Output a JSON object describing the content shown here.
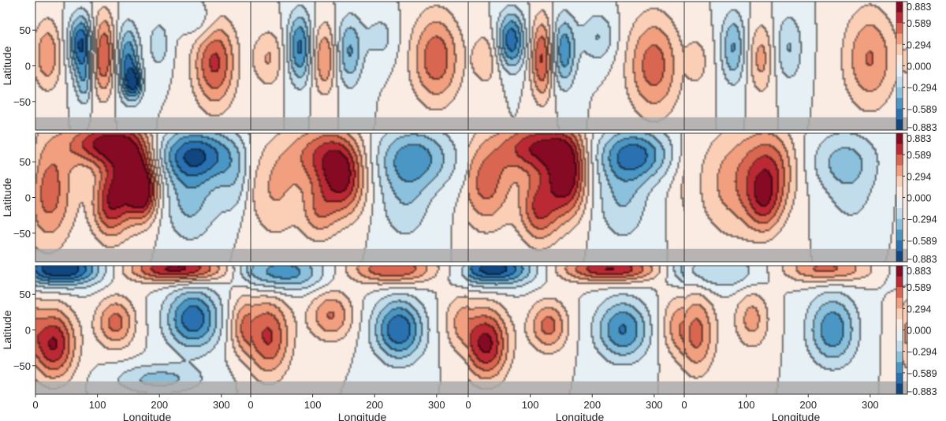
{
  "chart_data": {
    "type": "heatmap",
    "layout": {
      "rows": 3,
      "cols": 4
    },
    "xlabel": "Longitude",
    "ylabel": "Latitude",
    "xlim": [
      0,
      360
    ],
    "ylim": [
      -90,
      90
    ],
    "xticks": [
      0,
      100,
      200,
      300
    ],
    "yticks": [
      50,
      0,
      -50
    ],
    "colormap": "RdBu_r",
    "colorbar": {
      "ticks": [
        0.883,
        0.589,
        0.294,
        0.0,
        -0.294,
        -0.589,
        -0.883
      ],
      "tick_labels": [
        "0.883",
        "0.589",
        "0.294",
        "0.000",
        "−0.294",
        "−0.589",
        "−0.883"
      ],
      "range": [
        -0.883,
        0.883
      ],
      "levels": 12
    },
    "masked_band": {
      "lat_range": [
        -90,
        -72
      ],
      "color": "#aaaaaa"
    },
    "rows": [
      {
        "panels": [
          {
            "blobs": [
              {
                "lon": 20,
                "lat": 15,
                "a": 0.42,
                "slon": 16,
                "slat": 35
              },
              {
                "lon": 75,
                "lat": 30,
                "a": -0.78,
                "slon": 14,
                "slat": 28
              },
              {
                "lon": 80,
                "lat": -25,
                "a": -0.35,
                "slon": 10,
                "slat": 22
              },
              {
                "lon": 110,
                "lat": 15,
                "a": 0.62,
                "slon": 14,
                "slat": 40
              },
              {
                "lon": 150,
                "lat": 5,
                "a": -0.62,
                "slon": 13,
                "slat": 35
              },
              {
                "lon": 160,
                "lat": -25,
                "a": -0.55,
                "slon": 10,
                "slat": 15
              },
              {
                "lon": 200,
                "lat": 30,
                "a": -0.25,
                "slon": 12,
                "slat": 25
              },
              {
                "lon": 290,
                "lat": 5,
                "a": 0.62,
                "slon": 24,
                "slat": 45
              },
              {
                "lon": 270,
                "lat": 60,
                "a": -0.22,
                "slon": 20,
                "slat": 20
              }
            ]
          },
          {
            "blobs": [
              {
                "lon": 30,
                "lat": 10,
                "a": 0.3,
                "slon": 18,
                "slat": 30
              },
              {
                "lon": 80,
                "lat": 25,
                "a": -0.62,
                "slon": 14,
                "slat": 35
              },
              {
                "lon": 120,
                "lat": 10,
                "a": 0.45,
                "slon": 14,
                "slat": 35
              },
              {
                "lon": 160,
                "lat": 20,
                "a": -0.45,
                "slon": 15,
                "slat": 35
              },
              {
                "lon": 210,
                "lat": 40,
                "a": -0.2,
                "slon": 20,
                "slat": 25
              },
              {
                "lon": 300,
                "lat": 10,
                "a": 0.55,
                "slon": 28,
                "slat": 45
              }
            ]
          },
          {
            "blobs": [
              {
                "lon": 30,
                "lat": 10,
                "a": 0.25,
                "slon": 18,
                "slat": 30
              },
              {
                "lon": 70,
                "lat": 35,
                "a": -0.7,
                "slon": 16,
                "slat": 28
              },
              {
                "lon": 120,
                "lat": 10,
                "a": 0.62,
                "slon": 13,
                "slat": 40
              },
              {
                "lon": 155,
                "lat": 20,
                "a": -0.55,
                "slon": 14,
                "slat": 35
              },
              {
                "lon": 210,
                "lat": 40,
                "a": -0.3,
                "slon": 20,
                "slat": 25
              },
              {
                "lon": 300,
                "lat": 0,
                "a": 0.52,
                "slon": 30,
                "slat": 50
              }
            ]
          },
          {
            "blobs": [
              {
                "lon": 20,
                "lat": 5,
                "a": 0.2,
                "slon": 18,
                "slat": 30
              },
              {
                "lon": 80,
                "lat": 25,
                "a": -0.45,
                "slon": 14,
                "slat": 35
              },
              {
                "lon": 125,
                "lat": 10,
                "a": 0.35,
                "slon": 14,
                "slat": 35
              },
              {
                "lon": 170,
                "lat": 25,
                "a": -0.3,
                "slon": 16,
                "slat": 35
              },
              {
                "lon": 300,
                "lat": 10,
                "a": 0.45,
                "slon": 30,
                "slat": 50
              }
            ]
          }
        ]
      },
      {
        "panels": [
          {
            "blobs": [
              {
                "lon": 20,
                "lat": 10,
                "a": 0.55,
                "slon": 30,
                "slat": 55
              },
              {
                "lon": 110,
                "lat": 75,
                "a": 0.75,
                "slon": 40,
                "slat": 22
              },
              {
                "lon": 160,
                "lat": 30,
                "a": 0.85,
                "slon": 25,
                "slat": 40
              },
              {
                "lon": 120,
                "lat": -10,
                "a": 0.6,
                "slon": 20,
                "slat": 35
              },
              {
                "lon": 175,
                "lat": 5,
                "a": 0.45,
                "slon": 15,
                "slat": 25
              },
              {
                "lon": 260,
                "lat": 60,
                "a": -0.65,
                "slon": 45,
                "slat": 25
              },
              {
                "lon": 250,
                "lat": 0,
                "a": -0.35,
                "slon": 30,
                "slat": 45
              },
              {
                "lon": 330,
                "lat": 20,
                "a": -0.3,
                "slon": 25,
                "slat": 40
              }
            ]
          },
          {
            "blobs": [
              {
                "lon": 40,
                "lat": 10,
                "a": 0.3,
                "slon": 30,
                "slat": 50
              },
              {
                "lon": 120,
                "lat": 60,
                "a": 0.55,
                "slon": 40,
                "slat": 30
              },
              {
                "lon": 150,
                "lat": 20,
                "a": 0.65,
                "slon": 25,
                "slat": 35
              },
              {
                "lon": 110,
                "lat": -20,
                "a": 0.35,
                "slon": 20,
                "slat": 30
              },
              {
                "lon": 265,
                "lat": 55,
                "a": -0.5,
                "slon": 45,
                "slat": 30
              },
              {
                "lon": 250,
                "lat": -10,
                "a": -0.25,
                "slon": 30,
                "slat": 40
              }
            ]
          },
          {
            "blobs": [
              {
                "lon": 30,
                "lat": 20,
                "a": 0.5,
                "slon": 30,
                "slat": 45
              },
              {
                "lon": 110,
                "lat": 70,
                "a": 0.7,
                "slon": 40,
                "slat": 25
              },
              {
                "lon": 160,
                "lat": 30,
                "a": 0.85,
                "slon": 22,
                "slat": 40
              },
              {
                "lon": 115,
                "lat": -15,
                "a": 0.6,
                "slon": 22,
                "slat": 35
              },
              {
                "lon": 270,
                "lat": 60,
                "a": -0.6,
                "slon": 40,
                "slat": 25
              },
              {
                "lon": 250,
                "lat": 0,
                "a": -0.3,
                "slon": 30,
                "slat": 45
              }
            ]
          },
          {
            "blobs": [
              {
                "lon": 80,
                "lat": 20,
                "a": 0.35,
                "slon": 40,
                "slat": 55
              },
              {
                "lon": 140,
                "lat": 40,
                "a": 0.5,
                "slon": 30,
                "slat": 40
              },
              {
                "lon": 130,
                "lat": -10,
                "a": 0.4,
                "slon": 20,
                "slat": 30
              },
              {
                "lon": 260,
                "lat": 50,
                "a": -0.35,
                "slon": 40,
                "slat": 30
              },
              {
                "lon": 270,
                "lat": -10,
                "a": -0.15,
                "slon": 30,
                "slat": 30
              }
            ]
          }
        ]
      },
      {
        "panels": [
          {
            "blobs": [
              {
                "lon": 40,
                "lat": 85,
                "a": -0.95,
                "slon": 45,
                "slat": 16
              },
              {
                "lon": 230,
                "lat": 85,
                "a": 0.8,
                "slon": 55,
                "slat": 13
              },
              {
                "lon": 30,
                "lat": -20,
                "a": 0.75,
                "slon": 25,
                "slat": 35
              },
              {
                "lon": 130,
                "lat": 10,
                "a": 0.5,
                "slon": 22,
                "slat": 25
              },
              {
                "lon": 255,
                "lat": 15,
                "a": -0.7,
                "slon": 30,
                "slat": 30
              },
              {
                "lon": 340,
                "lat": 5,
                "a": 0.45,
                "slon": 18,
                "slat": 30
              },
              {
                "lon": 200,
                "lat": -70,
                "a": -0.35,
                "slon": 50,
                "slat": 15
              }
            ]
          },
          {
            "blobs": [
              {
                "lon": 50,
                "lat": 80,
                "a": -0.55,
                "slon": 50,
                "slat": 18
              },
              {
                "lon": 230,
                "lat": 85,
                "a": 0.6,
                "slon": 50,
                "slat": 15
              },
              {
                "lon": 30,
                "lat": -10,
                "a": 0.6,
                "slon": 25,
                "slat": 40
              },
              {
                "lon": 130,
                "lat": 20,
                "a": 0.45,
                "slon": 25,
                "slat": 25
              },
              {
                "lon": 240,
                "lat": 0,
                "a": -0.72,
                "slon": 28,
                "slat": 30
              },
              {
                "lon": 340,
                "lat": 10,
                "a": 0.3,
                "slon": 20,
                "slat": 30
              }
            ]
          },
          {
            "blobs": [
              {
                "lon": 40,
                "lat": 85,
                "a": -0.85,
                "slon": 45,
                "slat": 16
              },
              {
                "lon": 230,
                "lat": 85,
                "a": 0.75,
                "slon": 55,
                "slat": 13
              },
              {
                "lon": 30,
                "lat": -20,
                "a": 0.78,
                "slon": 25,
                "slat": 35
              },
              {
                "lon": 130,
                "lat": 5,
                "a": 0.5,
                "slon": 22,
                "slat": 25
              },
              {
                "lon": 250,
                "lat": 0,
                "a": -0.6,
                "slon": 30,
                "slat": 30
              },
              {
                "lon": 340,
                "lat": 5,
                "a": 0.35,
                "slon": 20,
                "slat": 30
              }
            ]
          },
          {
            "blobs": [
              {
                "lon": 60,
                "lat": 80,
                "a": -0.3,
                "slon": 50,
                "slat": 18
              },
              {
                "lon": 230,
                "lat": 85,
                "a": 0.5,
                "slon": 50,
                "slat": 14
              },
              {
                "lon": 20,
                "lat": -5,
                "a": 0.5,
                "slon": 22,
                "slat": 40
              },
              {
                "lon": 110,
                "lat": 15,
                "a": 0.35,
                "slon": 20,
                "slat": 30
              },
              {
                "lon": 240,
                "lat": 0,
                "a": -0.55,
                "slon": 28,
                "slat": 35
              }
            ]
          }
        ]
      }
    ]
  }
}
